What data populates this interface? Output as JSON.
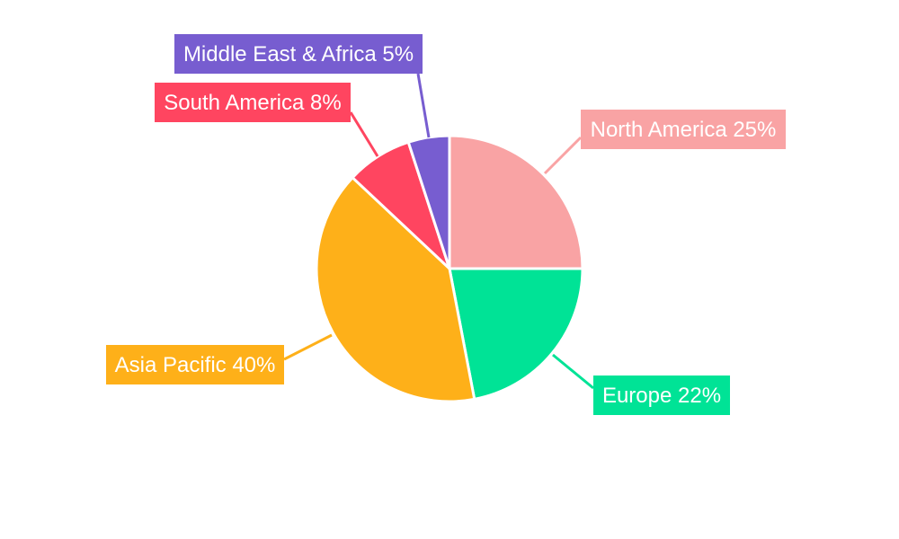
{
  "chart_data": {
    "type": "pie",
    "title": "",
    "start_angle": "12 o'clock, clockwise",
    "slices": [
      {
        "label": "North America",
        "value": 25,
        "text": "North America 25%",
        "color": "#f9a3a4"
      },
      {
        "label": "Europe",
        "value": 22,
        "text": "Europe 22%",
        "color": "#00e396"
      },
      {
        "label": "Asia Pacific",
        "value": 40,
        "text": "Asia Pacific 40%",
        "color": "#feb019"
      },
      {
        "label": "South America",
        "value": 8,
        "text": "South America 8%",
        "color": "#ff4560"
      },
      {
        "label": "Middle East & Africa",
        "value": 5,
        "text": "Middle East & Africa 5%",
        "color": "#775dd0"
      }
    ]
  }
}
